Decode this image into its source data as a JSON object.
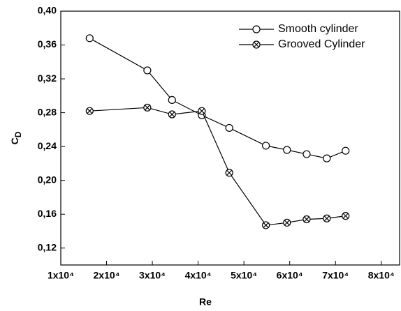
{
  "chart_data": {
    "type": "line",
    "x_label": "Re",
    "y_label": "C",
    "y_label_sub": "D",
    "xlim": [
      10000,
      84000
    ],
    "ylim": [
      0.1,
      0.4
    ],
    "xticks": [
      {
        "value": 10000,
        "label": "1x10⁴"
      },
      {
        "value": 20000,
        "label": "2x10⁴"
      },
      {
        "value": 30000,
        "label": "3x10⁴"
      },
      {
        "value": 40000,
        "label": "4x10⁴"
      },
      {
        "value": 50000,
        "label": "5x10⁴"
      },
      {
        "value": 60000,
        "label": "6x10⁴"
      },
      {
        "value": 70000,
        "label": "7x10⁴"
      },
      {
        "value": 80000,
        "label": "8x10⁴"
      }
    ],
    "yticks": [
      {
        "value": 0.12,
        "label": "0,12"
      },
      {
        "value": 0.16,
        "label": "0,16"
      },
      {
        "value": 0.2,
        "label": "0,20"
      },
      {
        "value": 0.24,
        "label": "0,24"
      },
      {
        "value": 0.28,
        "label": "0,28"
      },
      {
        "value": 0.32,
        "label": "0,32"
      },
      {
        "value": 0.36,
        "label": "0,36"
      },
      {
        "value": 0.4,
        "label": "0,40"
      }
    ],
    "series": [
      {
        "name": "Smooth cylinder",
        "color": "#000000",
        "marker": "circle",
        "x": [
          16300,
          28900,
          34300,
          40800,
          46800,
          54800,
          59400,
          63700,
          68100,
          72200
        ],
        "values": [
          0.368,
          0.33,
          0.295,
          0.277,
          0.262,
          0.241,
          0.236,
          0.231,
          0.226,
          0.235
        ]
      },
      {
        "name": "Grooved Cylinder",
        "color": "#000000",
        "marker": "circle-x",
        "x": [
          16300,
          28900,
          34300,
          40800,
          46800,
          54800,
          59400,
          63700,
          68100,
          72200
        ],
        "values": [
          0.282,
          0.286,
          0.278,
          0.282,
          0.209,
          0.147,
          0.15,
          0.154,
          0.155,
          0.158
        ]
      }
    ]
  }
}
